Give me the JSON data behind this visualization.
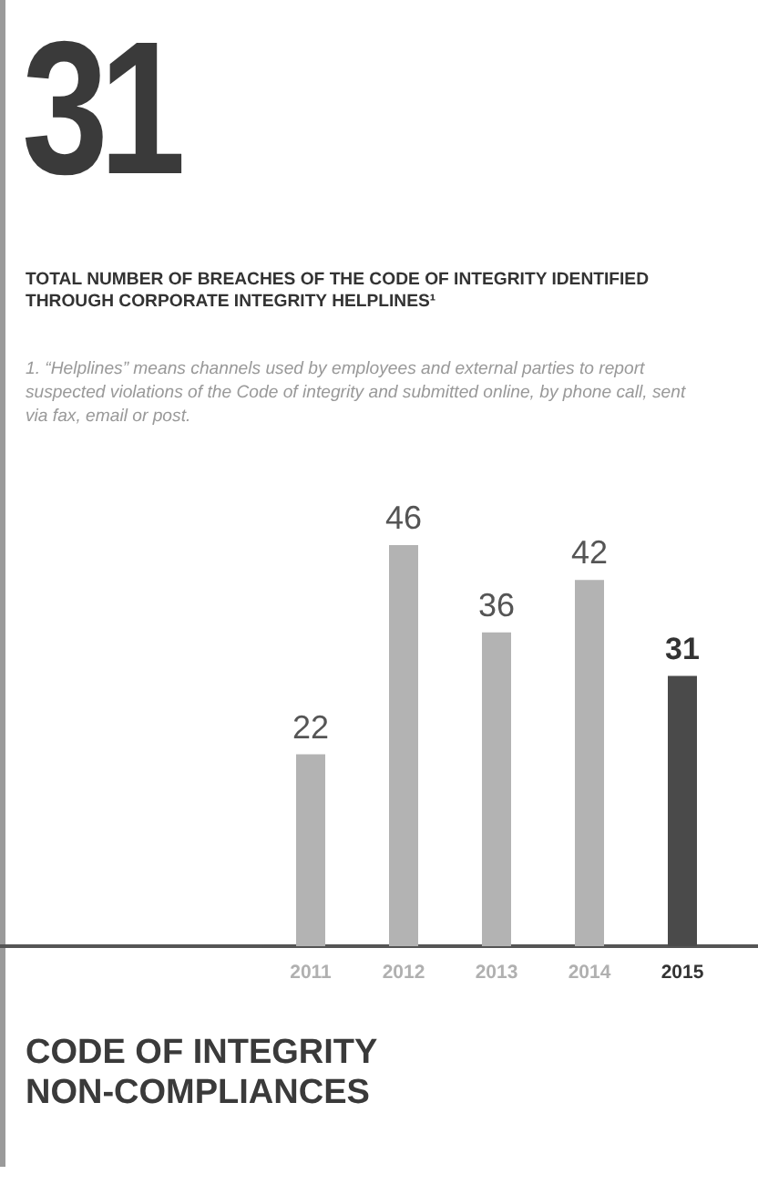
{
  "chart_data": {
    "type": "bar",
    "title": "TOTAL NUMBER OF BREACHES OF THE CODE OF INTEGRITY IDENTIFIED THROUGH CORPORATE INTEGRITY HELPLINES¹",
    "subtitle": "31",
    "annotations": [
      "1. “Helplines” means channels used by employees and external parties to report suspected violations of the Code of integrity and submitted online, by phone call, sent via fax, email or post.",
      "CODE OF INTEGRITY NON-COMPLIANCES"
    ],
    "categories": [
      "2011",
      "2012",
      "2013",
      "2014",
      "2015"
    ],
    "values": [
      22,
      46,
      36,
      42,
      31
    ],
    "colors": [
      "#b3b3b3",
      "#b3b3b3",
      "#b3b3b3",
      "#b3b3b3",
      "#4a4a4a"
    ],
    "data_labels": true
  }
}
